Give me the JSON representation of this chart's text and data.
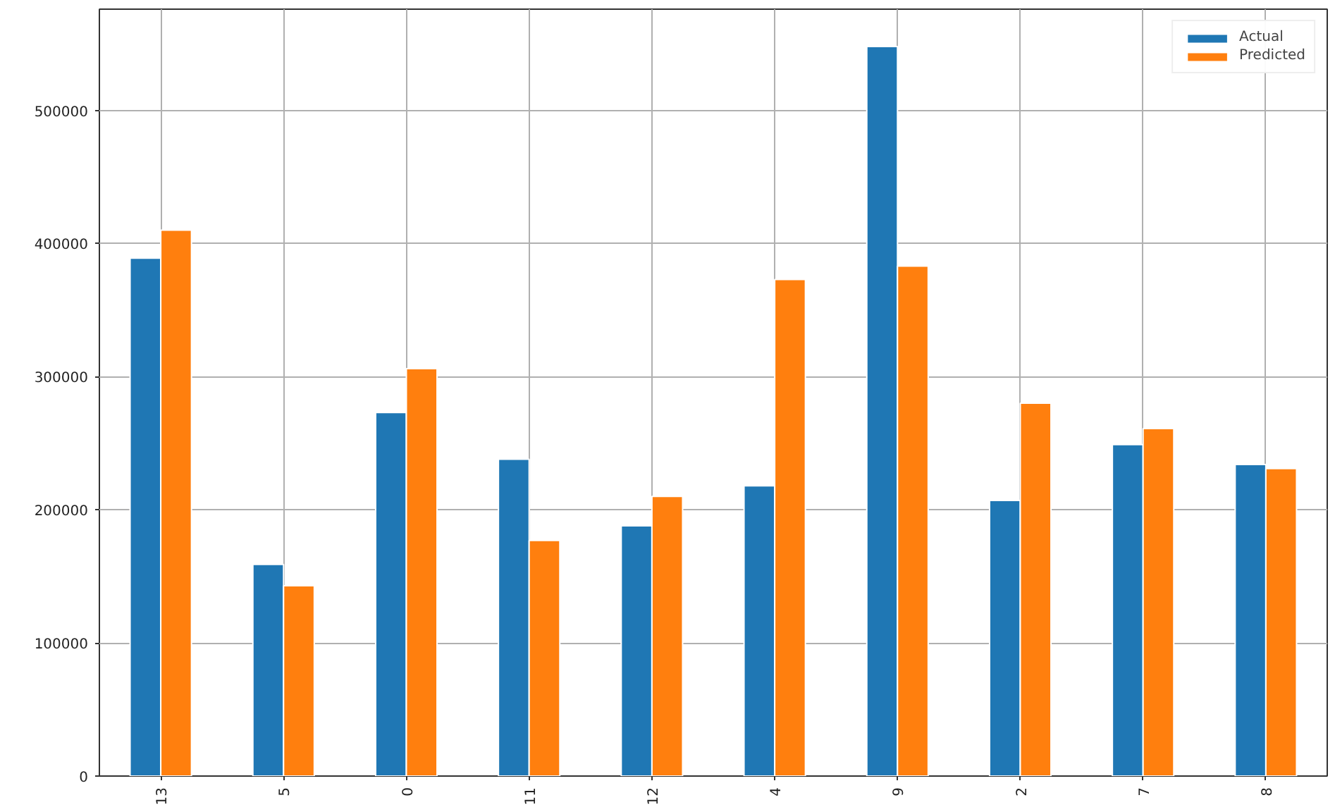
{
  "chart_data": {
    "type": "bar",
    "categories": [
      "13",
      "5",
      "0",
      "11",
      "12",
      "4",
      "9",
      "2",
      "7",
      "8"
    ],
    "series": [
      {
        "name": "Actual",
        "color": "#1f77b4",
        "values": [
          389000,
          159000,
          273000,
          238000,
          188000,
          218000,
          548000,
          207000,
          249000,
          234000
        ]
      },
      {
        "name": "Predicted",
        "color": "#ff7f0e",
        "values": [
          410000,
          143000,
          306000,
          177000,
          210000,
          373000,
          383000,
          280000,
          261000,
          231000
        ]
      }
    ],
    "ylim": [
      0,
      576000
    ],
    "yticks": [
      0,
      100000,
      200000,
      300000,
      400000,
      500000
    ],
    "grid": true,
    "legend": "top right"
  }
}
